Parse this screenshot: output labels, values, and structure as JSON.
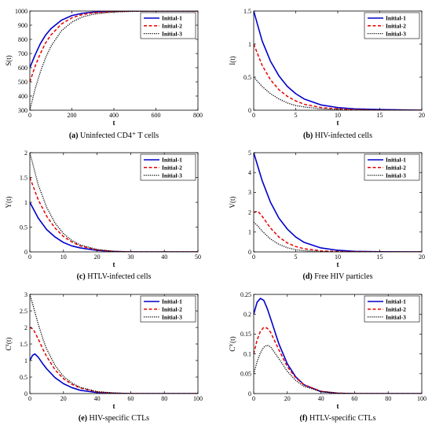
{
  "chart_data": [
    {
      "type": "line",
      "panel": "(a)",
      "caption": "Uninfected CD4⁺ T cells",
      "xlabel": "t",
      "ylabel": "S(t)",
      "xlim": [
        0,
        800
      ],
      "ylim": [
        300,
        1000
      ],
      "xticks": [
        0,
        200,
        400,
        600,
        800
      ],
      "yticks": [
        300,
        400,
        500,
        600,
        700,
        800,
        900,
        1000
      ],
      "legend_position": "top-right",
      "series": [
        {
          "name": "Initial-1",
          "color": "#0000cc",
          "style": "solid",
          "x": [
            0,
            25,
            50,
            75,
            100,
            150,
            200,
            250,
            300,
            400,
            500,
            600,
            800
          ],
          "y": [
            600,
            690,
            770,
            830,
            875,
            935,
            968,
            984,
            992,
            998,
            1000,
            1000,
            1000
          ]
        },
        {
          "name": "Initial-2",
          "color": "#e60000",
          "style": "dashed",
          "x": [
            0,
            25,
            50,
            75,
            100,
            150,
            200,
            250,
            300,
            400,
            500,
            600,
            800
          ],
          "y": [
            500,
            610,
            700,
            775,
            830,
            908,
            952,
            975,
            987,
            996,
            999,
            1000,
            1000
          ]
        },
        {
          "name": "Initial-3",
          "color": "#000000",
          "style": "dotted",
          "x": [
            0,
            25,
            50,
            75,
            100,
            150,
            200,
            250,
            300,
            400,
            500,
            600,
            800
          ],
          "y": [
            300,
            450,
            570,
            670,
            750,
            860,
            922,
            958,
            977,
            993,
            998,
            1000,
            1000
          ]
        }
      ]
    },
    {
      "type": "line",
      "panel": "(b)",
      "caption": "HIV-infected cells",
      "xlabel": "t",
      "ylabel": "I(t)",
      "xlim": [
        0,
        20
      ],
      "ylim": [
        0,
        1.5
      ],
      "xticks": [
        0,
        5,
        10,
        15,
        20
      ],
      "yticks": [
        0,
        0.5,
        1,
        1.5
      ],
      "legend_position": "top-right",
      "series": [
        {
          "name": "Initial-1",
          "color": "#0000cc",
          "style": "solid",
          "x": [
            0,
            1,
            2,
            3,
            4,
            5,
            6,
            8,
            10,
            12,
            15,
            20
          ],
          "y": [
            1.5,
            1.05,
            0.74,
            0.52,
            0.36,
            0.25,
            0.17,
            0.08,
            0.04,
            0.02,
            0.01,
            0
          ]
        },
        {
          "name": "Initial-2",
          "color": "#e60000",
          "style": "dashed",
          "x": [
            0,
            1,
            2,
            3,
            4,
            5,
            6,
            8,
            10,
            12,
            15,
            20
          ],
          "y": [
            1.0,
            0.68,
            0.46,
            0.31,
            0.21,
            0.14,
            0.09,
            0.04,
            0.02,
            0.01,
            0,
            0
          ]
        },
        {
          "name": "Initial-3",
          "color": "#000000",
          "style": "dotted",
          "x": [
            0,
            1,
            2,
            3,
            4,
            5,
            6,
            8,
            10,
            12,
            15,
            20
          ],
          "y": [
            0.5,
            0.36,
            0.25,
            0.17,
            0.11,
            0.07,
            0.05,
            0.02,
            0.01,
            0,
            0,
            0
          ]
        }
      ]
    },
    {
      "type": "line",
      "panel": "(c)",
      "caption": "HTLV-infected cells",
      "xlabel": "t",
      "ylabel": "Y(t)",
      "xlim": [
        0,
        50
      ],
      "ylim": [
        0,
        2
      ],
      "xticks": [
        0,
        10,
        20,
        30,
        40,
        50
      ],
      "yticks": [
        0,
        0.5,
        1,
        1.5,
        2
      ],
      "legend_position": "top-right",
      "series": [
        {
          "name": "Initial-1",
          "color": "#0000cc",
          "style": "solid",
          "x": [
            0,
            2.5,
            5,
            7.5,
            10,
            12.5,
            15,
            20,
            25,
            30,
            40,
            50
          ],
          "y": [
            1.0,
            0.68,
            0.45,
            0.3,
            0.19,
            0.12,
            0.08,
            0.03,
            0.01,
            0,
            0,
            0
          ]
        },
        {
          "name": "Initial-2",
          "color": "#e60000",
          "style": "dashed",
          "x": [
            0,
            2.5,
            5,
            7.5,
            10,
            12.5,
            15,
            20,
            25,
            30,
            40,
            50
          ],
          "y": [
            1.5,
            1.05,
            0.72,
            0.48,
            0.31,
            0.2,
            0.12,
            0.04,
            0.01,
            0,
            0,
            0
          ]
        },
        {
          "name": "Initial-3",
          "color": "#000000",
          "style": "dotted",
          "x": [
            0,
            2.5,
            5,
            7.5,
            10,
            12.5,
            15,
            20,
            25,
            30,
            40,
            50
          ],
          "y": [
            2.0,
            1.35,
            0.9,
            0.58,
            0.37,
            0.23,
            0.14,
            0.05,
            0.01,
            0,
            0,
            0
          ]
        }
      ]
    },
    {
      "type": "line",
      "panel": "(d)",
      "caption": "Free HIV particles",
      "xlabel": "t",
      "ylabel": "V(t)",
      "xlim": [
        0,
        20
      ],
      "ylim": [
        0,
        5
      ],
      "xticks": [
        0,
        5,
        10,
        15,
        20
      ],
      "yticks": [
        0,
        1,
        2,
        3,
        4,
        5
      ],
      "legend_position": "top-right",
      "series": [
        {
          "name": "Initial-1",
          "color": "#0000cc",
          "style": "solid",
          "x": [
            0,
            1,
            2,
            3,
            4,
            5,
            6,
            8,
            10,
            12,
            15,
            20
          ],
          "y": [
            5.0,
            3.6,
            2.5,
            1.7,
            1.15,
            0.75,
            0.48,
            0.2,
            0.08,
            0.03,
            0.01,
            0
          ]
        },
        {
          "name": "Initial-2",
          "color": "#e60000",
          "style": "dashed",
          "x": [
            0,
            0.5,
            1,
            2,
            3,
            4,
            5,
            6,
            8,
            10,
            15,
            20
          ],
          "y": [
            2.0,
            2.05,
            1.8,
            1.2,
            0.75,
            0.45,
            0.27,
            0.16,
            0.05,
            0.02,
            0,
            0
          ]
        },
        {
          "name": "Initial-3",
          "color": "#000000",
          "style": "dotted",
          "x": [
            0,
            0.5,
            1,
            2,
            3,
            4,
            5,
            6,
            8,
            10,
            15,
            20
          ],
          "y": [
            1.5,
            1.3,
            1.05,
            0.65,
            0.38,
            0.21,
            0.11,
            0.06,
            0.02,
            0,
            0,
            0
          ]
        }
      ]
    },
    {
      "type": "line",
      "panel": "(e)",
      "caption": "HIV-specific CTLs",
      "xlabel": "t",
      "ylabel": "C^I(t)",
      "xlim": [
        0,
        100
      ],
      "ylim": [
        0,
        3
      ],
      "xticks": [
        0,
        20,
        40,
        60,
        80,
        100
      ],
      "yticks": [
        0,
        0.5,
        1,
        1.5,
        2,
        2.5,
        3
      ],
      "legend_position": "top-right",
      "series": [
        {
          "name": "Initial-1",
          "color": "#0000cc",
          "style": "solid",
          "x": [
            0,
            1.5,
            3,
            5,
            8,
            10,
            15,
            20,
            25,
            30,
            40,
            50,
            60,
            100
          ],
          "y": [
            1.0,
            1.15,
            1.2,
            1.1,
            0.88,
            0.75,
            0.48,
            0.3,
            0.18,
            0.1,
            0.03,
            0.01,
            0,
            0
          ]
        },
        {
          "name": "Initial-2",
          "color": "#e60000",
          "style": "dashed",
          "x": [
            0,
            2,
            5,
            8,
            10,
            15,
            20,
            25,
            30,
            40,
            50,
            60,
            100
          ],
          "y": [
            2.0,
            1.95,
            1.65,
            1.32,
            1.12,
            0.72,
            0.45,
            0.28,
            0.17,
            0.05,
            0.01,
            0,
            0
          ]
        },
        {
          "name": "Initial-3",
          "color": "#000000",
          "style": "dotted",
          "x": [
            0,
            2,
            5,
            8,
            10,
            15,
            20,
            25,
            30,
            40,
            50,
            60,
            100
          ],
          "y": [
            3.0,
            2.65,
            2.1,
            1.62,
            1.35,
            0.85,
            0.52,
            0.32,
            0.19,
            0.06,
            0.02,
            0,
            0
          ]
        }
      ]
    },
    {
      "type": "line",
      "panel": "(f)",
      "caption": "HTLV-specific CTLs",
      "xlabel": "t",
      "ylabel": "C^Y(t)",
      "xlim": [
        0,
        100
      ],
      "ylim": [
        0,
        0.25
      ],
      "xticks": [
        0,
        20,
        40,
        60,
        80,
        100
      ],
      "yticks": [
        0,
        0.05,
        0.1,
        0.15,
        0.2,
        0.25
      ],
      "legend_position": "top-right",
      "series": [
        {
          "name": "Initial-1",
          "color": "#0000cc",
          "style": "solid",
          "x": [
            0,
            2,
            4,
            6,
            8,
            10,
            15,
            20,
            25,
            30,
            40,
            50,
            60,
            100
          ],
          "y": [
            0.2,
            0.23,
            0.24,
            0.235,
            0.215,
            0.19,
            0.125,
            0.075,
            0.042,
            0.022,
            0.005,
            0.001,
            0,
            0
          ]
        },
        {
          "name": "Initial-2",
          "color": "#e60000",
          "style": "dashed",
          "x": [
            0,
            2,
            4,
            6,
            8,
            10,
            15,
            20,
            25,
            30,
            40,
            50,
            60,
            100
          ],
          "y": [
            0.1,
            0.135,
            0.157,
            0.167,
            0.165,
            0.155,
            0.11,
            0.068,
            0.04,
            0.022,
            0.006,
            0.001,
            0,
            0
          ]
        },
        {
          "name": "Initial-3",
          "color": "#000000",
          "style": "dotted",
          "x": [
            0,
            2,
            4,
            6,
            8,
            10,
            15,
            20,
            25,
            30,
            40,
            50,
            60,
            100
          ],
          "y": [
            0.05,
            0.08,
            0.103,
            0.117,
            0.122,
            0.118,
            0.088,
            0.056,
            0.033,
            0.018,
            0.005,
            0.001,
            0,
            0
          ]
        }
      ]
    }
  ]
}
